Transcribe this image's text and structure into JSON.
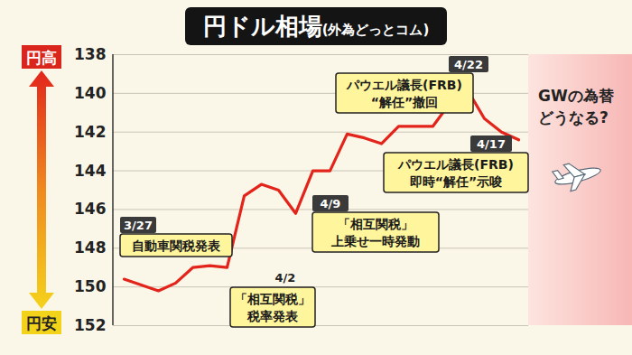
{
  "chart_data": {
    "type": "line",
    "title": "円ドル相場",
    "subtitle": "(外為どっとコム)",
    "ylabel": {
      "top": "円高",
      "bottom": "円安"
    },
    "categories": [
      null,
      null,
      null,
      null,
      null,
      null,
      null,
      null,
      null,
      null,
      null,
      null,
      null,
      null,
      null,
      null,
      null,
      null,
      null,
      null,
      null,
      null,
      null,
      null
    ],
    "values": [
      149.6,
      149.9,
      150.2,
      149.8,
      149.0,
      148.9,
      149.0,
      145.3,
      144.7,
      145.0,
      146.2,
      144.0,
      144.0,
      142.1,
      142.3,
      142.6,
      141.7,
      141.7,
      141.7,
      140.5,
      139.8,
      141.3,
      142.0,
      142.4
    ],
    "color": "#e3241b",
    "ylim": [
      152,
      138
    ],
    "yticks": [
      138,
      140,
      142,
      144,
      146,
      148,
      150,
      152
    ],
    "grid": true,
    "tick_labels": "y",
    "annotations": [
      {
        "date": "3/27",
        "lines": [
          "自動車関税発表"
        ]
      },
      {
        "date": "4/2",
        "lines": [
          "「相互関税」",
          "税率発表"
        ]
      },
      {
        "date": "4/9",
        "lines": [
          "「相互関税」",
          "上乗せ一時発動"
        ]
      },
      {
        "date": "4/17",
        "lines": [
          "パウエル議長(FRB)",
          "即時“解任”示唆"
        ]
      },
      {
        "date": "4/22",
        "lines": [
          "パウエル議長(FRB)",
          "“解任”撤回"
        ]
      }
    ],
    "side_text": [
      "GWの為替",
      "どうなる?"
    ]
  }
}
